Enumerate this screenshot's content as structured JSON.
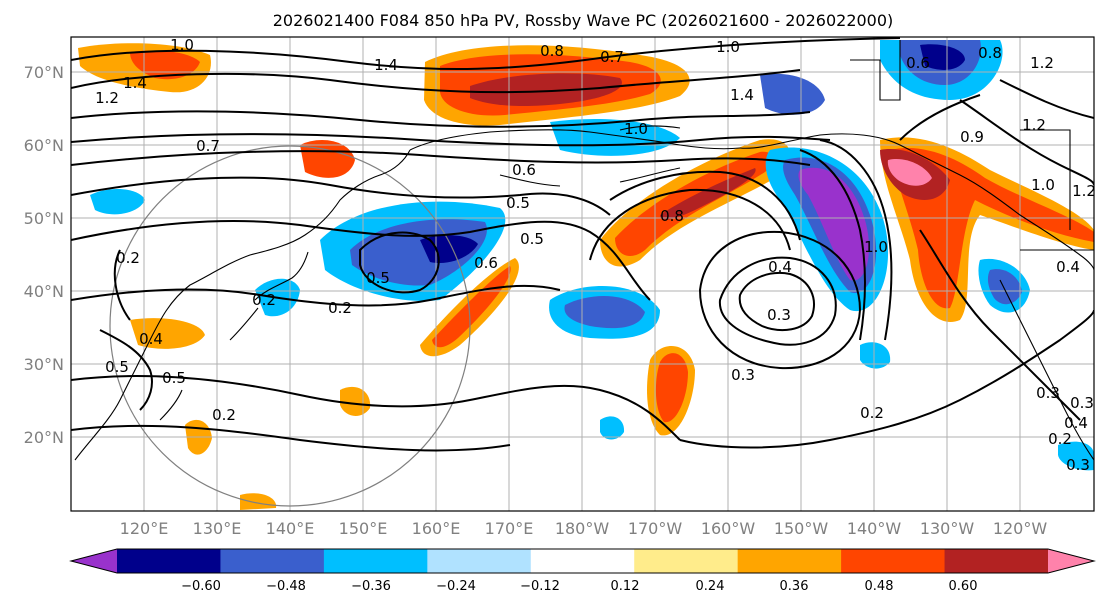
{
  "title": "2026021400 F084 850 hPa PV, Rossby Wave PC (2026021600 - 2026022000)",
  "map": {
    "projection": "PlateCarree (Pacific-centered)",
    "lat_range": [
      10,
      75
    ],
    "lon_range_deg_east": [
      113,
      253
    ],
    "lat_ticks": [
      "20°N",
      "30°N",
      "40°N",
      "50°N",
      "60°N",
      "70°N"
    ],
    "lon_ticks": [
      "120°E",
      "130°E",
      "140°E",
      "150°E",
      "160°E",
      "170°E",
      "180°W",
      "170°W",
      "160°W",
      "150°W",
      "140°W",
      "130°W",
      "120°W"
    ],
    "grid": true,
    "coastlines": true
  },
  "colorbar": {
    "ticks": [
      "−0.60",
      "−0.48",
      "−0.36",
      "−0.24",
      "−0.12",
      "0.12",
      "0.24",
      "0.36",
      "0.48",
      "0.60"
    ],
    "colors": [
      "#9932cc",
      "#00008b",
      "#3a5fcd",
      "#00bfff",
      "#b0e2ff",
      "#ffffff",
      "#ffec8b",
      "#ffa500",
      "#ff4500",
      "#b22222",
      "#ff82ab"
    ],
    "extend": "both"
  },
  "pv_contour_labels": [
    {
      "text": "1.0"
    },
    {
      "text": "1.4"
    },
    {
      "text": "1.2"
    },
    {
      "text": "1.4"
    },
    {
      "text": "0.8"
    },
    {
      "text": "0.7"
    },
    {
      "text": "1.0"
    },
    {
      "text": "1.4"
    },
    {
      "text": "1.0"
    },
    {
      "text": "0.7"
    },
    {
      "text": "0.6"
    },
    {
      "text": "0.5"
    },
    {
      "text": "0.5"
    },
    {
      "text": "0.6"
    },
    {
      "text": "0.5"
    },
    {
      "text": "0.8"
    },
    {
      "text": "0.2"
    },
    {
      "text": "0.2"
    },
    {
      "text": "0.2"
    },
    {
      "text": "0.4"
    },
    {
      "text": "0.5"
    },
    {
      "text": "0.5"
    },
    {
      "text": "0.2"
    },
    {
      "text": "0.4"
    },
    {
      "text": "0.3"
    },
    {
      "text": "0.3"
    },
    {
      "text": "0.2"
    },
    {
      "text": "1.0"
    },
    {
      "text": "0.9"
    },
    {
      "text": "1.0"
    },
    {
      "text": "1.2"
    },
    {
      "text": "1.2"
    },
    {
      "text": "1.2"
    },
    {
      "text": "0.8"
    },
    {
      "text": "0.6"
    },
    {
      "text": "0.4"
    },
    {
      "text": "0.3"
    },
    {
      "text": "0.3"
    },
    {
      "text": "0.4"
    },
    {
      "text": "0.2"
    },
    {
      "text": "0.3"
    }
  ]
}
